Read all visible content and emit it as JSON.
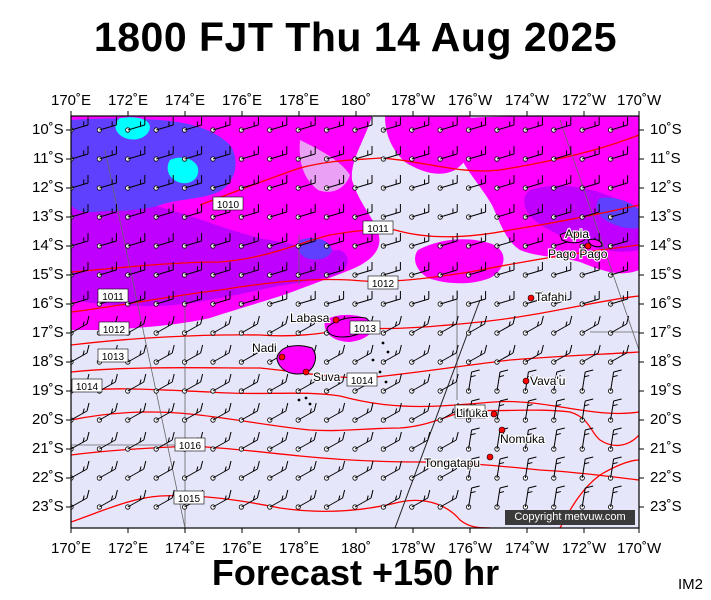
{
  "header": {
    "title": "1800 FJT Thu 14 Aug 2025"
  },
  "footer": {
    "forecast": "Forecast +150 hr",
    "code": "IM2"
  },
  "copyright": "Copyright metvuw.com",
  "axes": {
    "lon_labels": [
      "170˚E",
      "172˚E",
      "174˚E",
      "176˚E",
      "178˚E",
      "180˚",
      "178˚W",
      "176˚W",
      "174˚W",
      "172˚W",
      "170˚W"
    ],
    "lat_labels": [
      "10˚S",
      "11˚S",
      "12˚S",
      "13˚S",
      "14˚S",
      "15˚S",
      "16˚S",
      "17˚S",
      "18˚S",
      "19˚S",
      "20˚S",
      "21˚S",
      "22˚S",
      "23˚S"
    ]
  },
  "isobar_labels": [
    "1010",
    "1011",
    "1011",
    "1012",
    "1012",
    "1013",
    "1013",
    "1014",
    "1014",
    "1015",
    "1016",
    "1015"
  ],
  "places": [
    "Labasa",
    "Nadi",
    "Suva",
    "Apia",
    "Pago Pago",
    "Tafahi",
    "Vava'u",
    "Lifuka",
    "Nomuka",
    "Tongatapu"
  ],
  "colors": {
    "background": "#e6e6fa",
    "rain_heavy": "#ff00ff",
    "rain_medium": "#c000ff",
    "rain_strong": "#6040ff",
    "rain_extreme": "#00ffff",
    "isobar": "#ff0000",
    "land": "#ff00ff",
    "wind_barb": "#000000"
  }
}
